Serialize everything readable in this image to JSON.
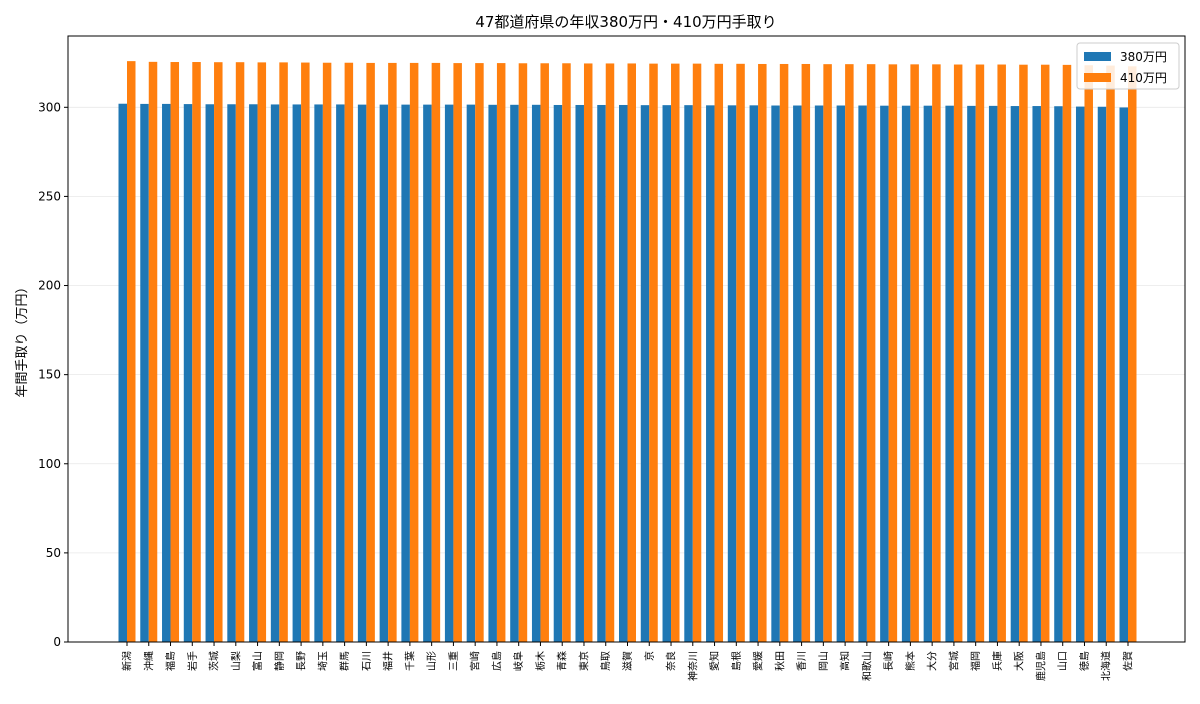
{
  "chart_data": {
    "type": "bar",
    "title": "47都道府県の年収380万円・410万円手取り",
    "xlabel": "",
    "ylabel": "年間手取り（万円）",
    "ylim": [
      0,
      340
    ],
    "yticks": [
      0,
      50,
      100,
      150,
      200,
      250,
      300
    ],
    "grid": true,
    "legend_position": "top-right",
    "categories": [
      "新潟",
      "沖縄",
      "福島",
      "岩手",
      "茨城",
      "山梨",
      "富山",
      "静岡",
      "長野",
      "埼玉",
      "群馬",
      "石川",
      "福井",
      "千葉",
      "山形",
      "三重",
      "宮崎",
      "広島",
      "岐阜",
      "栃木",
      "青森",
      "東京",
      "鳥取",
      "滋賀",
      "京",
      "奈良",
      "神奈川",
      "愛知",
      "島根",
      "愛媛",
      "秋田",
      "香川",
      "岡山",
      "高知",
      "和歌山",
      "長崎",
      "熊本",
      "大分",
      "宮城",
      "福岡",
      "兵庫",
      "大阪",
      "鹿児島",
      "山口",
      "徳島",
      "北海道",
      "佐賀"
    ],
    "series": [
      {
        "name": "380万円",
        "color": "#1f77b4",
        "values": [
          302.0,
          301.9,
          301.9,
          301.8,
          301.7,
          301.7,
          301.7,
          301.6,
          301.6,
          301.6,
          301.6,
          301.5,
          301.5,
          301.5,
          301.5,
          301.5,
          301.5,
          301.4,
          301.4,
          301.4,
          301.3,
          301.3,
          301.3,
          301.3,
          301.2,
          301.2,
          301.2,
          301.1,
          301.1,
          301.1,
          301.0,
          301.0,
          301.0,
          301.0,
          301.0,
          300.9,
          300.9,
          300.9,
          300.9,
          300.8,
          300.8,
          300.7,
          300.7,
          300.6,
          300.4,
          300.3,
          299.9
        ]
      },
      {
        "name": "410万円",
        "color": "#ff7f0e",
        "values": [
          325.9,
          325.5,
          325.4,
          325.4,
          325.3,
          325.3,
          325.2,
          325.2,
          325.1,
          325.0,
          325.0,
          324.9,
          324.9,
          324.9,
          324.9,
          324.8,
          324.8,
          324.8,
          324.7,
          324.7,
          324.7,
          324.6,
          324.6,
          324.6,
          324.5,
          324.5,
          324.5,
          324.4,
          324.4,
          324.3,
          324.3,
          324.3,
          324.2,
          324.2,
          324.2,
          324.1,
          324.1,
          324.1,
          324.0,
          324.0,
          324.0,
          323.9,
          323.9,
          323.8,
          323.6,
          323.4,
          323.0
        ]
      }
    ]
  }
}
